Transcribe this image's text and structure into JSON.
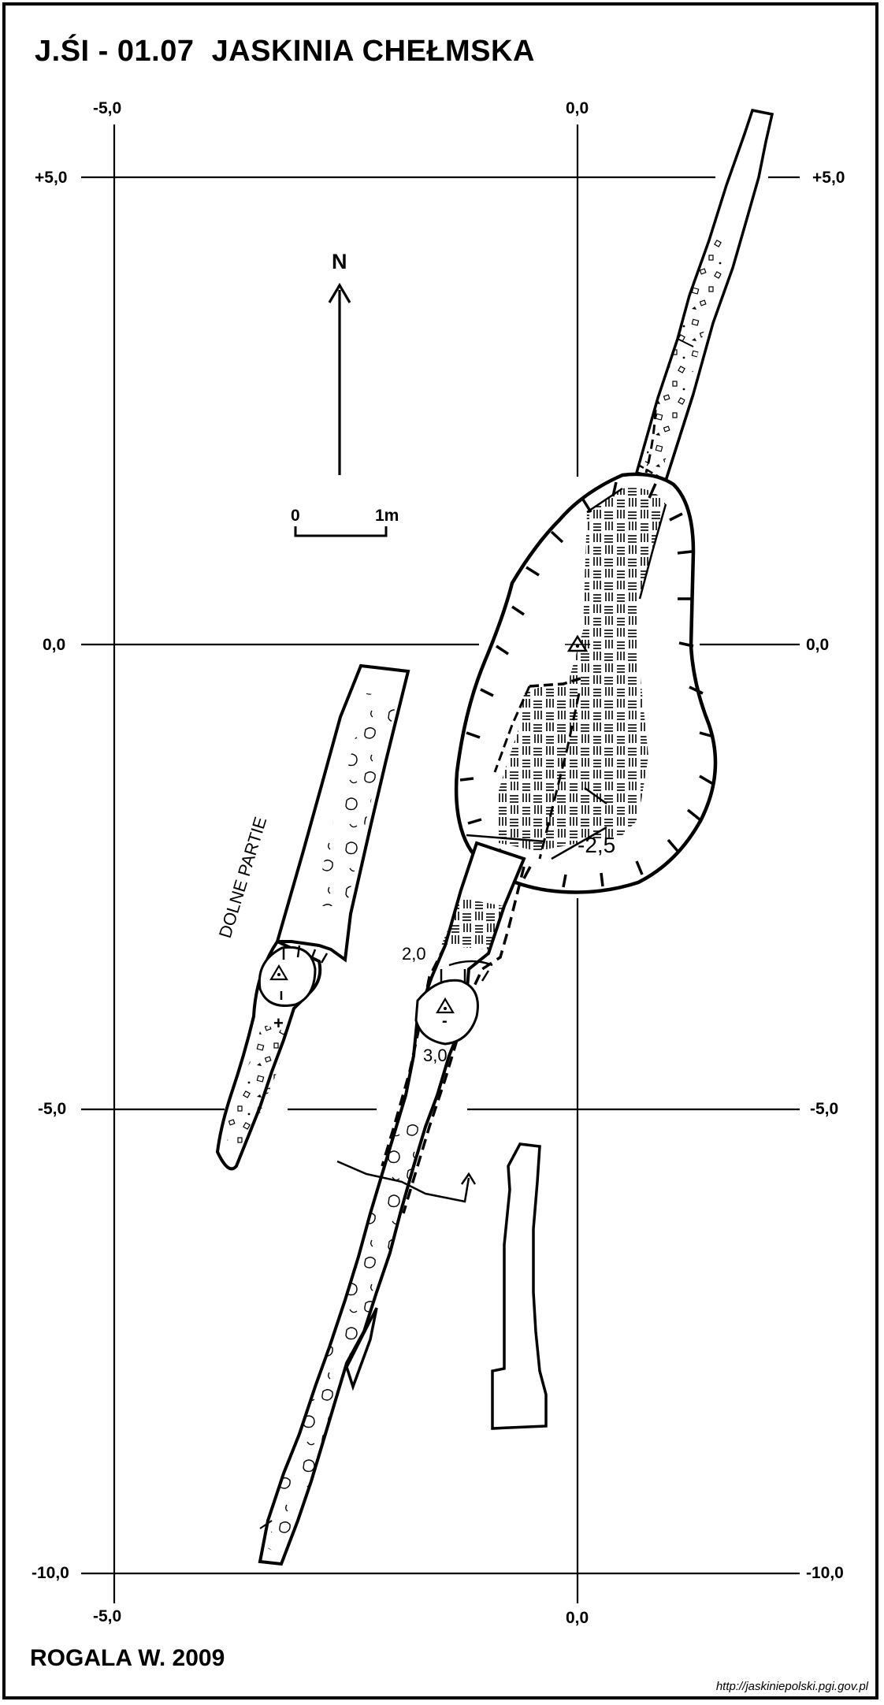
{
  "title": "J.ŚI - 01.07  JASKINIA CHEŁMSKA",
  "author": "ROGALA W. 2009",
  "source": "http://jaskiniepolski.pgi.gov.pl",
  "grid": {
    "top_x_left": "-5,0",
    "top_x_right": "0,0",
    "bottom_x_left": "-5,0",
    "bottom_x_right": "0,0",
    "left_y": [
      "+5,0",
      "0,0",
      "-5,0",
      "-10,0"
    ],
    "right_y": [
      "+5,0",
      "0,0",
      "-5,0",
      "-10,0"
    ]
  },
  "north_arrow": {
    "label": "N"
  },
  "scale_bar": {
    "start": "0",
    "end": "1m"
  },
  "labels": {
    "lower_part": "DOLNE PARTIE",
    "depth_main": "-2,5",
    "depth_a": "2,0",
    "depth_b": "3,0"
  },
  "symbols": {
    "plus": "+",
    "minus": "-"
  }
}
